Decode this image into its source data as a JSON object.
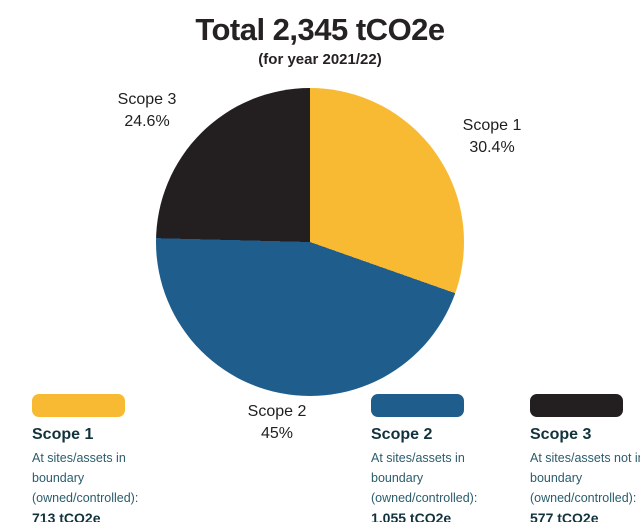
{
  "header": {
    "title": "Total 2,345 tCO2e",
    "subtitle": "(for year 2021/22)"
  },
  "chart_data": {
    "type": "pie",
    "title": "Total 2,345 tCO2e",
    "subtitle": "(for year 2021/22)",
    "total_label": "2,345 tCO2e",
    "start_angle_deg": 0,
    "direction": "clockwise",
    "legend_position": "bottom",
    "slices": [
      {
        "label": "Scope 1",
        "pct_label": "30.4%",
        "value_pct": 30.4,
        "value_tco2e": 713,
        "color": "#f8ba33"
      },
      {
        "label": "Scope 2",
        "pct_label": "45%",
        "value_pct": 45.0,
        "value_tco2e": 1055,
        "color": "#1f5e8c"
      },
      {
        "label": "Scope 3",
        "pct_label": "24.6%",
        "value_pct": 24.6,
        "value_tco2e": 577,
        "color": "#231f20"
      }
    ]
  },
  "legend": {
    "items": [
      {
        "title": "Scope 1",
        "description": "At sites/assets in boundary (owned/controlled):",
        "value": "713 tCO2e",
        "color": "#f8ba33"
      },
      {
        "title": "Scope 2",
        "description": "At sites/assets in boundary (owned/controlled):",
        "value": "1,055 tCO2e",
        "color": "#1f5e8c"
      },
      {
        "title": "Scope 3",
        "description": "At sites/assets not in boundary (owned/controlled):",
        "value": "577 tCO2e",
        "color": "#231f20"
      }
    ]
  }
}
